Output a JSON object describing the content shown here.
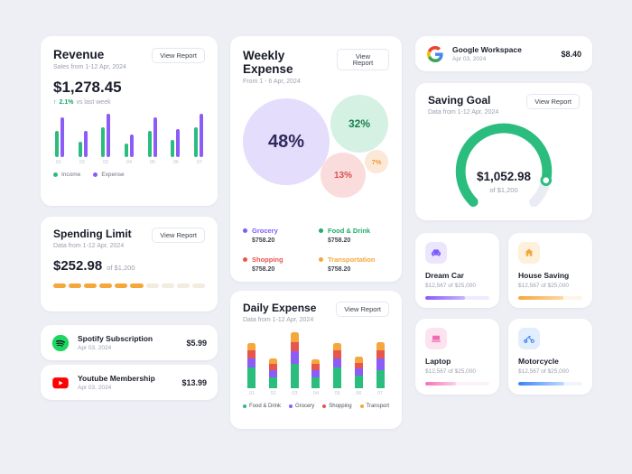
{
  "buttons": {
    "view_report": "View Report"
  },
  "revenue_card": {
    "title": "Revenue",
    "subtitle": "Sales from 1-12 Apr, 2024",
    "amount": "$1,278.45",
    "trend_arrow": "↑",
    "trend_pct": "2.1%",
    "trend_note": "vs last week"
  },
  "spending_card": {
    "title": "Spending Limit",
    "subtitle": "Data from 1-12 Apr, 2024",
    "amount": "$252.98",
    "of": "of $1,200",
    "segments_total": 10,
    "segments_filled": 6
  },
  "subscriptions": [
    {
      "name": "Spotify Subscription",
      "date": "Apr 03, 2024",
      "amount": "$5.99",
      "icon": "spotify-icon"
    },
    {
      "name": "Youtube Membership",
      "date": "Apr 03, 2024",
      "amount": "$13.99",
      "icon": "youtube-icon"
    },
    {
      "name": "Google Workspace",
      "date": "Apr 03, 2024",
      "amount": "$8.40",
      "icon": "google-icon"
    }
  ],
  "weekly_card": {
    "title": "Weekly Expense",
    "subtitle": "From 1 - 6 Apr, 2024"
  },
  "daily_card": {
    "title": "Daily Expense",
    "subtitle": "Data from 1-12 Apr, 2024"
  },
  "saving_card": {
    "title": "Saving Goal",
    "subtitle": "Data from 1-12 Apr, 2024",
    "amount": "$1,052.98",
    "of": "of $1,200"
  },
  "goals": [
    {
      "title": "Dream Car",
      "subtitle": "$12,567 of $25,000",
      "progress_pct": 62,
      "bar_color": "#8b5cf6",
      "bar_color2": "#c4b5fd",
      "icon": "car-icon"
    },
    {
      "title": "House Saving",
      "subtitle": "$12,567 of $25,000",
      "progress_pct": 70,
      "bar_color": "#f5a73b",
      "bar_color2": "#fcd9a0",
      "icon": "house-icon"
    },
    {
      "title": "Laptop",
      "subtitle": "$12,567 of $25,000",
      "progress_pct": 48,
      "bar_color": "#f472b6",
      "bar_color2": "#fbcfe8",
      "icon": "laptop-icon"
    },
    {
      "title": "Motorcycle",
      "subtitle": "$12,567 of $25,000",
      "progress_pct": 72,
      "bar_color": "#3b82f6",
      "bar_color2": "#bfdbfe",
      "icon": "motorcycle-icon"
    }
  ],
  "chart_data": [
    {
      "id": "revenue",
      "type": "bar",
      "title": "Revenue",
      "categories": [
        "01",
        "02",
        "03",
        "04",
        "05",
        "06",
        "07"
      ],
      "series": [
        {
          "name": "Income",
          "color": "#2bbd7e",
          "values": [
            30,
            18,
            34,
            16,
            30,
            20,
            34
          ]
        },
        {
          "name": "Expense",
          "color": "#8b5cf6",
          "values": [
            46,
            30,
            50,
            26,
            46,
            32,
            50
          ]
        }
      ],
      "ylim": [
        0,
        50
      ],
      "legend_position": "bottom"
    },
    {
      "id": "weekly",
      "type": "pie",
      "title": "Weekly Expense",
      "slices": [
        {
          "label": "Grocery",
          "pct": 48,
          "pct_label": "48%",
          "amount": "$758.20",
          "color": "#7c5cfc",
          "bubble_bg": "#e4ddfb",
          "text_color": "#312a5e"
        },
        {
          "label": "Food & Drink",
          "pct": 32,
          "pct_label": "32%",
          "amount": "$758.20",
          "color": "#1fae68",
          "bubble_bg": "#d5f1e3",
          "text_color": "#17814e"
        },
        {
          "label": "Shopping",
          "pct": 13,
          "pct_label": "13%",
          "amount": "$758.20",
          "color": "#e8554d",
          "bubble_bg": "#fadcdc",
          "text_color": "#d9534f"
        },
        {
          "label": "Transportation",
          "pct": 7,
          "pct_label": "7%",
          "amount": "$758.20",
          "color": "#f5a73b",
          "bubble_bg": "#fbe8d7",
          "text_color": "#ef9b3c"
        }
      ]
    },
    {
      "id": "daily",
      "type": "stacked-bar",
      "title": "Daily Expense",
      "categories": [
        "01",
        "02",
        "03",
        "04",
        "05",
        "06",
        "07"
      ],
      "series": [
        {
          "name": "Food & Drink",
          "color": "#2bbd7e",
          "values": [
            22,
            12,
            26,
            12,
            22,
            14,
            20
          ]
        },
        {
          "name": "Grocery",
          "color": "#8b5cf6",
          "values": [
            10,
            8,
            14,
            8,
            10,
            8,
            12
          ]
        },
        {
          "name": "Shopping",
          "color": "#e8554d",
          "values": [
            8,
            6,
            10,
            6,
            8,
            6,
            9
          ]
        },
        {
          "name": "Transport",
          "color": "#f5a73b",
          "values": [
            8,
            6,
            10,
            5,
            8,
            6,
            9
          ]
        }
      ],
      "ylim": [
        0,
        60
      ],
      "legend_position": "bottom"
    },
    {
      "id": "saving",
      "type": "gauge",
      "value": 1052.98,
      "goal": 1200,
      "color": "#2bbd7e"
    }
  ]
}
